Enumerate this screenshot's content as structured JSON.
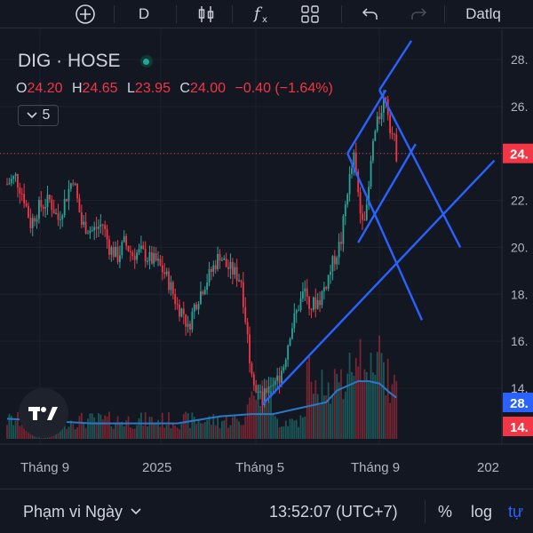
{
  "toolbar": {
    "add_icon": "plus-circle-icon",
    "interval": "D",
    "chart_type_icon": "candles-icon",
    "indicators_icon": "fx-icon",
    "layouts_icon": "grid-icon",
    "undo_icon": "undo-icon",
    "redo_icon": "redo-icon",
    "account": "Datlq"
  },
  "legend": {
    "symbol": "DIG · HOSE",
    "open_label": "O",
    "open": "24.20",
    "high_label": "H",
    "high": "24.65",
    "low_label": "L",
    "low": "23.95",
    "close_label": "C",
    "close": "24.00",
    "change": "−0.40 (−1.64%)",
    "indicators_count": "5"
  },
  "price_axis": {
    "ticks": [
      "28.",
      "26.",
      "24.",
      "22.",
      "20.",
      "18.",
      "16.",
      "14."
    ],
    "last_price_badge": "24.",
    "ma_badge": "28.",
    "volume_badge": "14."
  },
  "time_axis": {
    "ticks": [
      "Tháng 9",
      "2025",
      "Tháng 5",
      "Tháng 9",
      "202"
    ]
  },
  "statusbar": {
    "range": "Phạm vi Ngày",
    "time": "13:52:07 (UTC+7)",
    "percent": "%",
    "log": "log",
    "auto": "tự"
  },
  "colors": {
    "background": "#131722",
    "up": "#26a69a",
    "down": "#f23645",
    "trendline": "#2962ff",
    "volume_ma": "#2a78c8",
    "ma_badge": "#2962ff"
  },
  "chart_data": {
    "type": "candlestick",
    "symbol": "DIG · HOSE",
    "price_range": [
      12.2,
      29.0
    ],
    "x_ticks": [
      "Tháng 9",
      "2025",
      "Tháng 5",
      "Tháng 9",
      "202"
    ],
    "y_ticks": [
      28,
      26,
      24,
      22,
      20,
      18,
      16,
      14
    ],
    "last_close": 24.0,
    "close_path": [
      [
        0,
        22.7
      ],
      [
        4,
        23.0
      ],
      [
        8,
        22.1
      ],
      [
        11,
        21.0
      ],
      [
        15,
        21.7
      ],
      [
        20,
        22.0
      ],
      [
        24,
        21.2
      ],
      [
        28,
        22.2
      ],
      [
        31,
        23.0
      ],
      [
        35,
        21.0
      ],
      [
        40,
        20.7
      ],
      [
        45,
        21.0
      ],
      [
        48,
        20.0
      ],
      [
        52,
        19.6
      ],
      [
        55,
        20.2
      ],
      [
        59,
        19.7
      ],
      [
        63,
        19.8
      ],
      [
        67,
        19.5
      ],
      [
        70,
        19.4
      ],
      [
        74,
        18.9
      ],
      [
        77,
        18.3
      ],
      [
        80,
        17.5
      ],
      [
        83,
        17.2
      ],
      [
        85,
        16.5
      ],
      [
        88,
        17.5
      ],
      [
        92,
        18.3
      ],
      [
        95,
        18.8
      ],
      [
        100,
        19.7
      ],
      [
        103,
        19.2
      ],
      [
        107,
        18.9
      ],
      [
        110,
        18.6
      ],
      [
        114,
        15.4
      ],
      [
        117,
        14.0
      ],
      [
        120,
        13.4
      ],
      [
        123,
        14.2
      ],
      [
        127,
        14.3
      ],
      [
        130,
        15.0
      ],
      [
        133,
        16.4
      ],
      [
        137,
        17.5
      ],
      [
        140,
        18.2
      ],
      [
        143,
        17.5
      ],
      [
        147,
        17.8
      ],
      [
        150,
        18.5
      ],
      [
        153,
        19.3
      ],
      [
        157,
        20.3
      ],
      [
        160,
        22.5
      ],
      [
        163,
        23.8
      ],
      [
        166,
        21.5
      ],
      [
        169,
        21.5
      ],
      [
        172,
        24.5
      ],
      [
        176,
        26.0
      ],
      [
        178,
        26.5
      ],
      [
        180,
        25.2
      ],
      [
        182,
        24.5
      ],
      [
        183,
        24.0
      ]
    ],
    "volume_ma": [
      [
        0,
        12.7
      ],
      [
        20,
        12.6
      ],
      [
        40,
        12.5
      ],
      [
        60,
        12.5
      ],
      [
        80,
        12.5
      ],
      [
        100,
        12.8
      ],
      [
        115,
        12.9
      ],
      [
        125,
        12.9
      ],
      [
        135,
        13.1
      ],
      [
        150,
        13.4
      ],
      [
        155,
        13.9
      ],
      [
        160,
        14.1
      ],
      [
        165,
        14.3
      ],
      [
        170,
        14.3
      ],
      [
        175,
        14.2
      ],
      [
        180,
        13.8
      ],
      [
        183,
        13.6
      ]
    ],
    "volume_max": 1.0,
    "trendlines": [
      [
        [
          120,
          13.3
        ],
        [
          229,
          23.7
        ]
      ],
      [
        [
          160,
          24.0
        ],
        [
          195,
          16.9
        ]
      ],
      [
        [
          175,
          26.7
        ],
        [
          213,
          20.0
        ]
      ],
      [
        [
          175,
          26.7
        ],
        [
          190,
          28.8
        ]
      ],
      [
        [
          160,
          24.0
        ],
        [
          178,
          26.7
        ]
      ],
      [
        [
          165,
          20.2
        ],
        [
          192,
          24.4
        ]
      ]
    ],
    "horizontal_line": 24.0
  }
}
